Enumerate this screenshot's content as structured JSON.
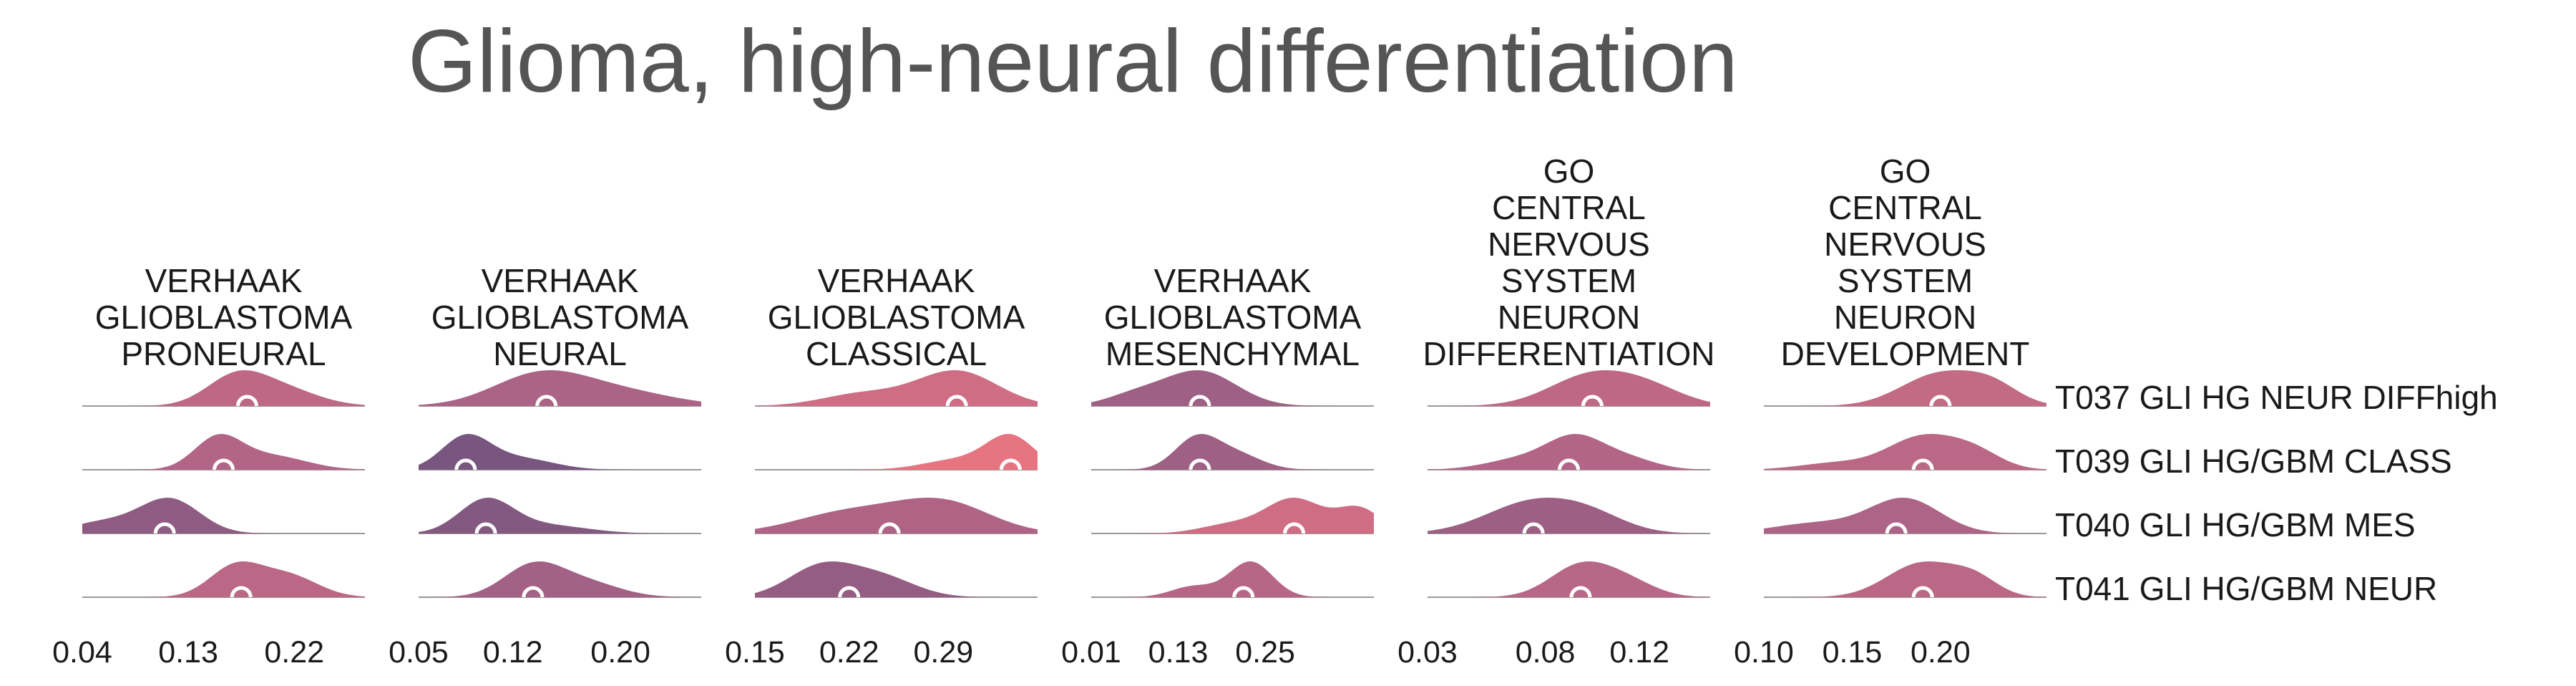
{
  "chart_data": {
    "type": "ridgeline",
    "title": "Glioma, high-neural differentiation",
    "rows": [
      "T037 GLI HG NEUR DIFFhigh",
      "T039 GLI HG/GBM CLASS",
      "T040 GLI HG/GBM MES",
      "T041 GLI HG/GBM NEUR"
    ],
    "colors": {
      "low": "#5a4e7c",
      "mid": "#b36587",
      "high": "#f3787f",
      "baseline": "#999999",
      "marker": "#ffffff"
    },
    "panels": [
      {
        "title_lines": [
          "VERHAAK",
          "GLIOBLASTOMA",
          "PRONEURAL"
        ],
        "xlim": [
          0.04,
          0.28
        ],
        "ticks": [
          "0.04",
          "0.13",
          "0.22"
        ],
        "tick_values": [
          0.04,
          0.13,
          0.22
        ],
        "series": [
          {
            "row": "T037 GLI HG NEUR DIFFhigh",
            "median": 0.18,
            "peaks": [
              [
                0.17,
                0.025,
                1.0
              ],
              [
                0.21,
                0.03,
                0.6
              ]
            ]
          },
          {
            "row": "T039 GLI HG/GBM CLASS",
            "median": 0.16,
            "peaks": [
              [
                0.155,
                0.02,
                1.0
              ],
              [
                0.2,
                0.03,
                0.45
              ]
            ]
          },
          {
            "row": "T040 GLI HG/GBM MES",
            "median": 0.11,
            "peaks": [
              [
                0.115,
                0.025,
                1.0
              ],
              [
                0.06,
                0.03,
                0.35
              ]
            ]
          },
          {
            "row": "T041 GLI HG/GBM NEUR",
            "median": 0.175,
            "peaks": [
              [
                0.17,
                0.022,
                1.0
              ],
              [
                0.215,
                0.025,
                0.7
              ]
            ]
          }
        ]
      },
      {
        "title_lines": [
          "VERHAAK",
          "GLIOBLASTOMA",
          "NEURAL"
        ],
        "xlim": [
          0.05,
          0.26
        ],
        "ticks": [
          "0.05",
          "0.12",
          "0.20"
        ],
        "tick_values": [
          0.05,
          0.12,
          0.2
        ],
        "series": [
          {
            "row": "T037 GLI HG NEUR DIFFhigh",
            "median": 0.145,
            "peaks": [
              [
                0.14,
                0.035,
                1.0
              ],
              [
                0.2,
                0.04,
                0.45
              ]
            ]
          },
          {
            "row": "T039 GLI HG/GBM CLASS",
            "median": 0.085,
            "peaks": [
              [
                0.085,
                0.018,
                1.0
              ],
              [
                0.125,
                0.025,
                0.35
              ]
            ]
          },
          {
            "row": "T040 GLI HG/GBM MES",
            "median": 0.1,
            "peaks": [
              [
                0.1,
                0.02,
                1.0
              ],
              [
                0.145,
                0.03,
                0.25
              ]
            ]
          },
          {
            "row": "T041 GLI HG/GBM NEUR",
            "median": 0.135,
            "peaks": [
              [
                0.135,
                0.022,
                1.0
              ],
              [
                0.175,
                0.025,
                0.45
              ]
            ]
          }
        ]
      },
      {
        "title_lines": [
          "VERHAAK",
          "GLIOBLASTOMA",
          "CLASSICAL"
        ],
        "xlim": [
          0.15,
          0.36
        ],
        "ticks": [
          "0.15",
          "0.22",
          "0.29"
        ],
        "tick_values": [
          0.15,
          0.22,
          0.29
        ],
        "series": [
          {
            "row": "T037 GLI HG NEUR DIFFhigh",
            "median": 0.3,
            "peaks": [
              [
                0.3,
                0.03,
                1.0
              ],
              [
                0.23,
                0.03,
                0.35
              ]
            ]
          },
          {
            "row": "T039 GLI HG/GBM CLASS",
            "median": 0.34,
            "peaks": [
              [
                0.34,
                0.018,
                1.0
              ],
              [
                0.3,
                0.025,
                0.3
              ]
            ]
          },
          {
            "row": "T040 GLI HG/GBM MES",
            "median": 0.25,
            "peaks": [
              [
                0.29,
                0.035,
                1.0
              ],
              [
                0.22,
                0.04,
                0.7
              ]
            ]
          },
          {
            "row": "T041 GLI HG/GBM NEUR",
            "median": 0.22,
            "peaks": [
              [
                0.2,
                0.025,
                1.0
              ],
              [
                0.245,
                0.025,
                0.6
              ]
            ]
          }
        ]
      },
      {
        "title_lines": [
          "VERHAAK",
          "GLIOBLASTOMA",
          "MESENCHYMAL"
        ],
        "xlim": [
          0.01,
          0.4
        ],
        "ticks": [
          "0.01",
          "0.13",
          "0.25"
        ],
        "tick_values": [
          0.01,
          0.13,
          0.25
        ],
        "series": [
          {
            "row": "T037 GLI HG NEUR DIFFhigh",
            "median": 0.16,
            "peaks": [
              [
                0.16,
                0.05,
                1.0
              ],
              [
                0.07,
                0.04,
                0.3
              ]
            ]
          },
          {
            "row": "T039 GLI HG/GBM CLASS",
            "median": 0.16,
            "peaks": [
              [
                0.155,
                0.03,
                1.0
              ],
              [
                0.21,
                0.035,
                0.5
              ]
            ]
          },
          {
            "row": "T040 GLI HG/GBM MES",
            "median": 0.29,
            "peaks": [
              [
                0.29,
                0.04,
                1.0
              ],
              [
                0.38,
                0.03,
                0.7
              ],
              [
                0.2,
                0.04,
                0.25
              ]
            ]
          },
          {
            "row": "T041 GLI HG/GBM NEUR",
            "median": 0.22,
            "peaks": [
              [
                0.23,
                0.03,
                1.0
              ],
              [
                0.15,
                0.03,
                0.3
              ]
            ]
          }
        ]
      },
      {
        "title_lines": [
          "GO",
          "CENTRAL",
          "NERVOUS",
          "SYSTEM",
          "NEURON",
          "DIFFERENTIATION"
        ],
        "xlim": [
          0.03,
          0.15
        ],
        "ticks": [
          "0.03",
          "0.08",
          "0.12"
        ],
        "tick_values": [
          0.03,
          0.08,
          0.12
        ],
        "series": [
          {
            "row": "T037 GLI HG NEUR DIFFhigh",
            "median": 0.1,
            "peaks": [
              [
                0.1,
                0.018,
                1.0
              ],
              [
                0.125,
                0.015,
                0.45
              ]
            ]
          },
          {
            "row": "T039 GLI HG/GBM CLASS",
            "median": 0.09,
            "peaks": [
              [
                0.093,
                0.012,
                1.0
              ],
              [
                0.07,
                0.015,
                0.35
              ],
              [
                0.115,
                0.012,
                0.35
              ]
            ]
          },
          {
            "row": "T040 GLI HG/GBM MES",
            "median": 0.075,
            "peaks": [
              [
                0.075,
                0.02,
                1.0
              ],
              [
                0.1,
                0.015,
                0.4
              ]
            ]
          },
          {
            "row": "T041 GLI HG/GBM NEUR",
            "median": 0.095,
            "peaks": [
              [
                0.095,
                0.013,
                1.0
              ],
              [
                0.115,
                0.012,
                0.45
              ]
            ]
          }
        ]
      },
      {
        "title_lines": [
          "GO",
          "CENTRAL",
          "NERVOUS",
          "SYSTEM",
          "NEURON",
          "DEVELOPMENT"
        ],
        "xlim": [
          0.1,
          0.26
        ],
        "ticks": [
          "0.10",
          "0.15",
          "0.20"
        ],
        "tick_values": [
          0.1,
          0.15,
          0.2
        ],
        "series": [
          {
            "row": "T037 GLI HG NEUR DIFFhigh",
            "median": 0.2,
            "peaks": [
              [
                0.2,
                0.022,
                1.0
              ],
              [
                0.23,
                0.015,
                0.5
              ]
            ]
          },
          {
            "row": "T039 GLI HG/GBM CLASS",
            "median": 0.19,
            "peaks": [
              [
                0.19,
                0.02,
                1.0
              ],
              [
                0.14,
                0.02,
                0.2
              ],
              [
                0.22,
                0.015,
                0.45
              ]
            ]
          },
          {
            "row": "T040 GLI HG/GBM MES",
            "median": 0.175,
            "peaks": [
              [
                0.18,
                0.02,
                1.0
              ],
              [
                0.13,
                0.025,
                0.3
              ]
            ]
          },
          {
            "row": "T041 GLI HG/GBM NEUR",
            "median": 0.19,
            "peaks": [
              [
                0.19,
                0.02,
                1.0
              ],
              [
                0.22,
                0.013,
                0.45
              ]
            ]
          }
        ]
      }
    ]
  }
}
